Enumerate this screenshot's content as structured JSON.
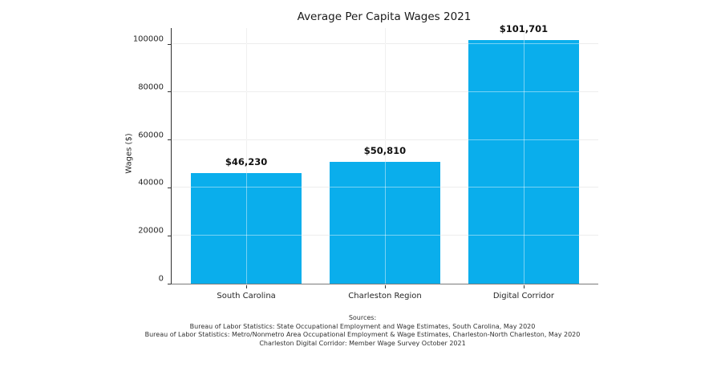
{
  "chart_data": {
    "type": "bar",
    "title": "Average Per Capita Wages 2021",
    "xlabel": "",
    "ylabel": "Wages ($)",
    "categories": [
      "South Carolina",
      "Charleston Region",
      "Digital Corridor"
    ],
    "values": [
      46230,
      50810,
      101701
    ],
    "bar_labels": [
      "$46,230",
      "$50,810",
      "$101,701"
    ],
    "bar_color": "#0aaeec",
    "ylim": [
      0,
      106700
    ],
    "yticks": [
      0,
      20000,
      40000,
      60000,
      80000,
      100000
    ],
    "ytick_labels": [
      "0",
      "20000",
      "40000",
      "60000",
      "80000",
      "100000"
    ],
    "grid": true,
    "legend_position": "none"
  },
  "footer": {
    "lines": [
      "Sources:",
      "Bureau of Labor Statistics: State Occupational Employment and Wage Estimates, South Carolina, May 2020",
      "Bureau of Labor Statistics: Metro/Nonmetro Area Occupational Employment & Wage Estimates, Charleston-North Charleston, May 2020",
      "Charleston Digital Corridor: Member Wage Survey October 2021"
    ]
  }
}
